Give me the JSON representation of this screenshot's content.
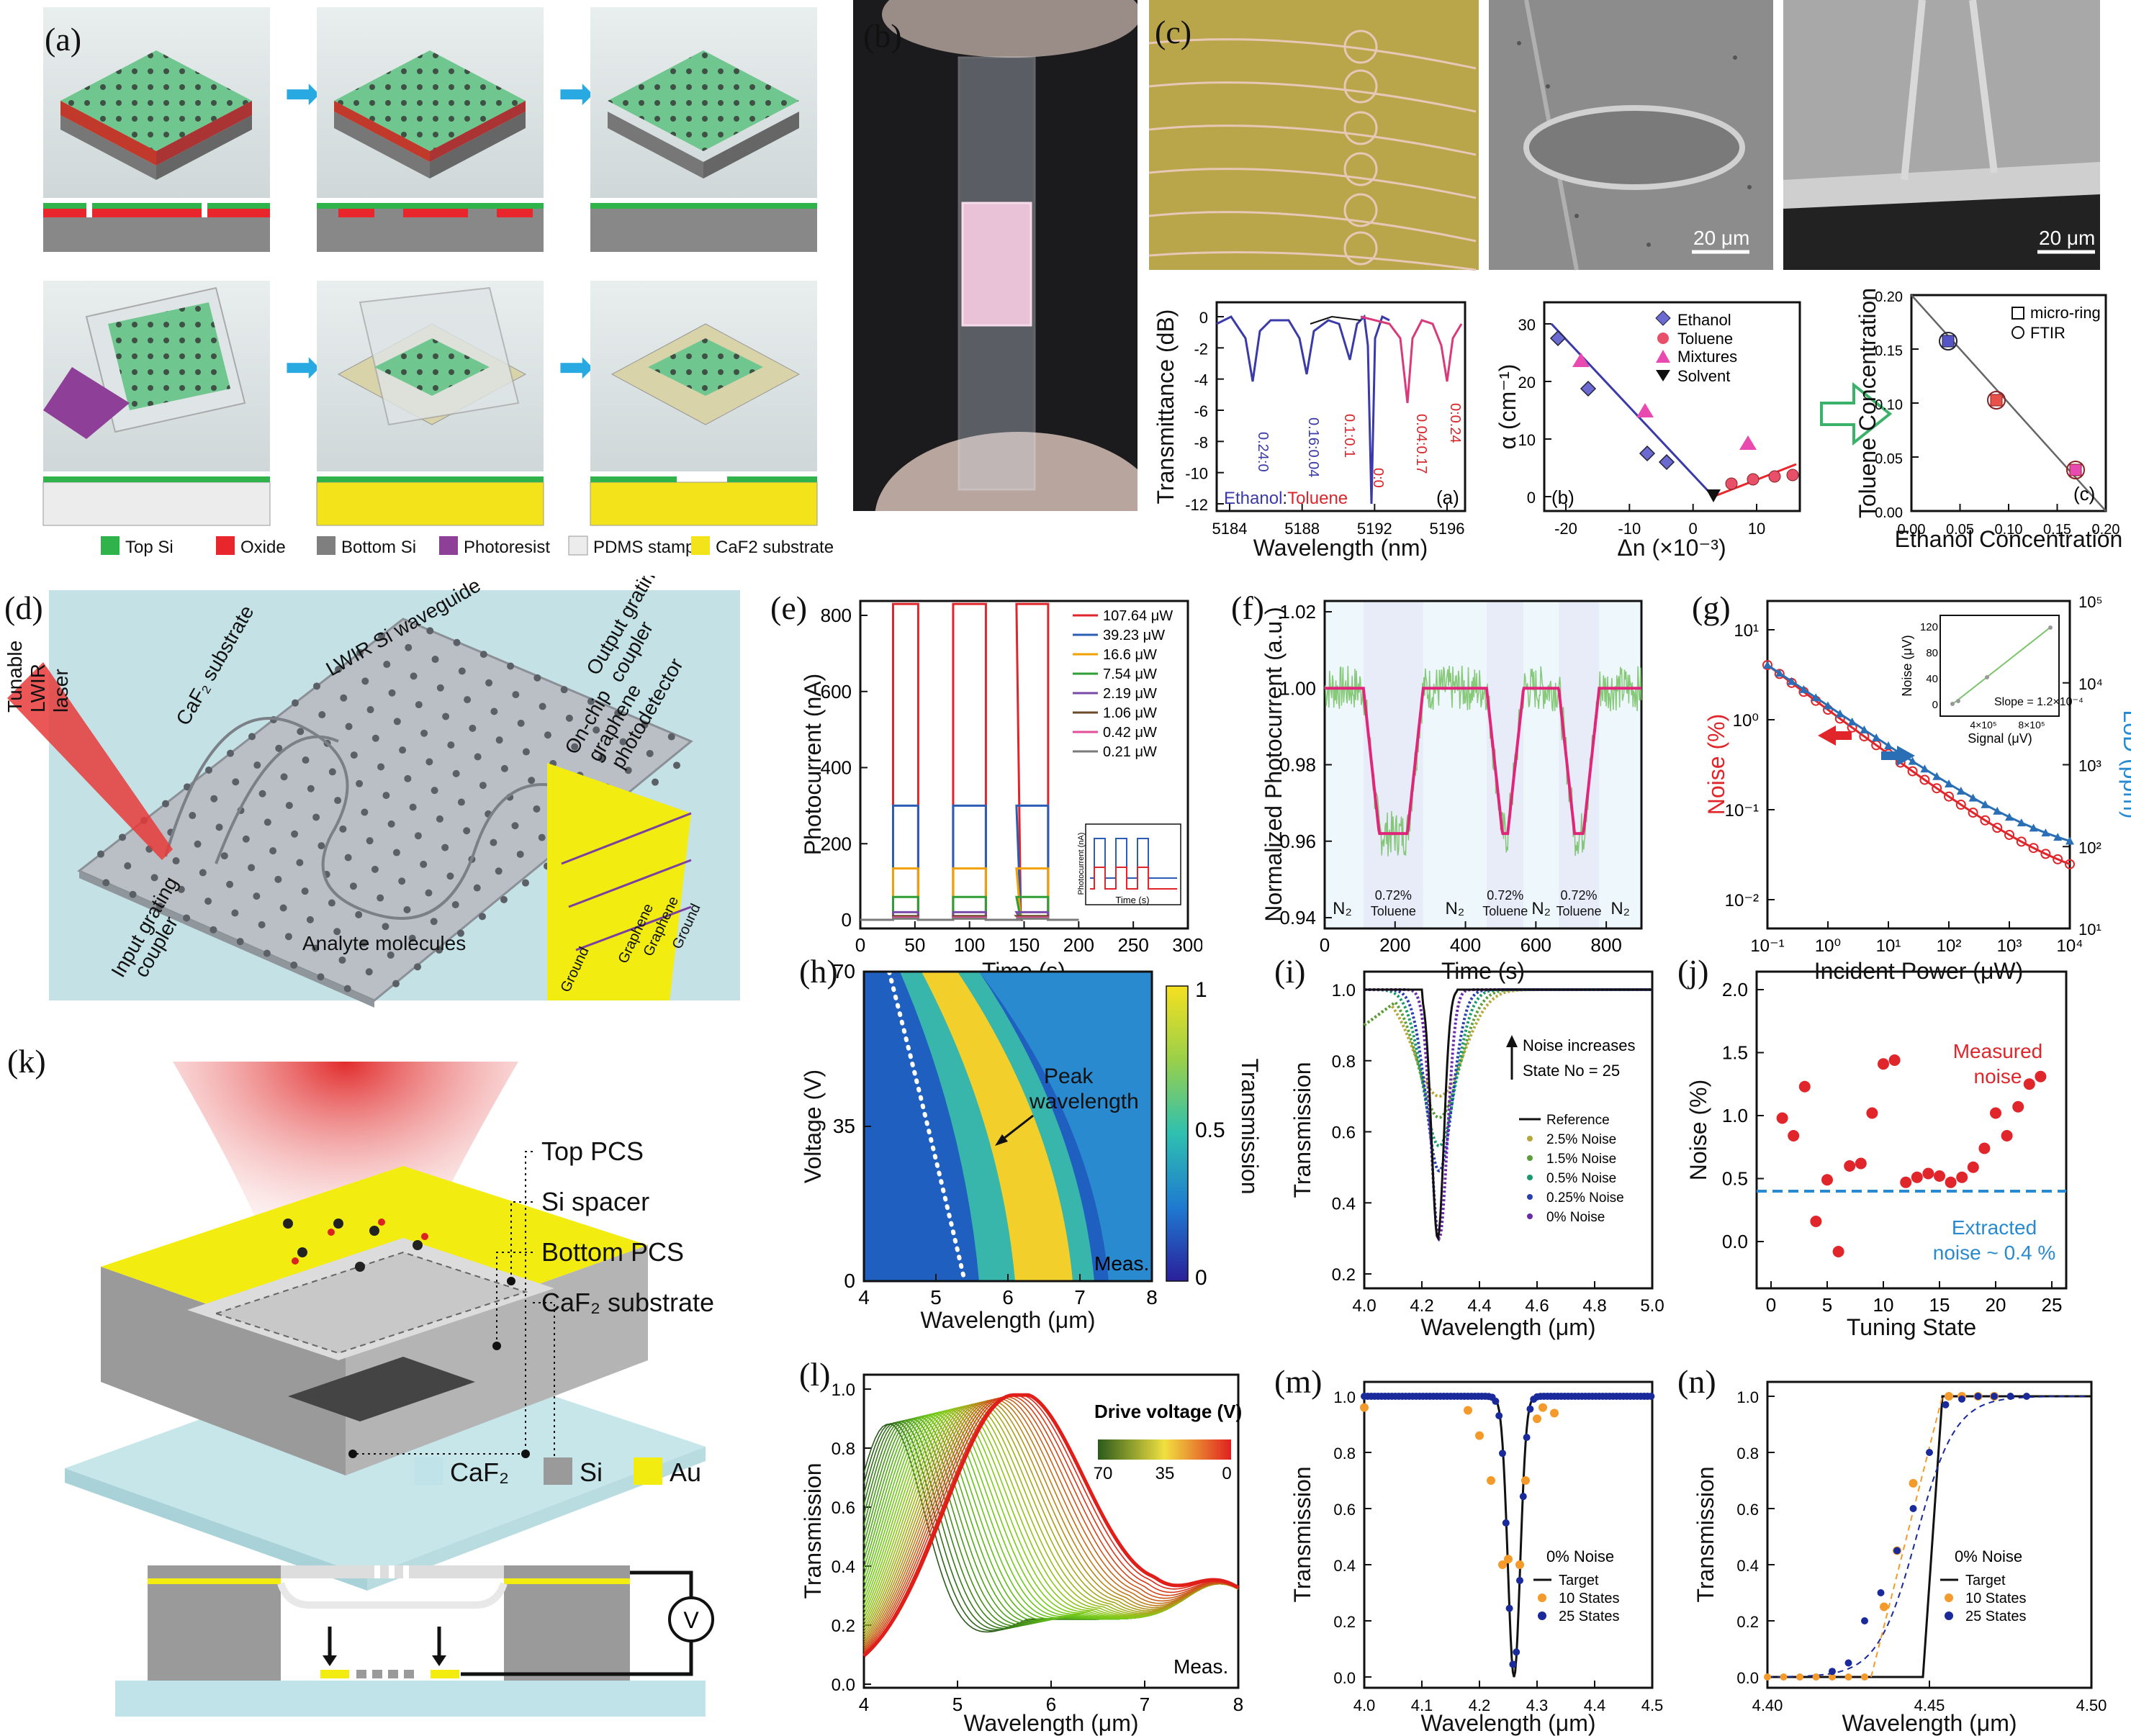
{
  "panel_labels": {
    "a": "(a)",
    "b": "(b)",
    "c": "(c)",
    "d": "(d)",
    "e": "(e)",
    "f": "(f)",
    "g": "(g)",
    "h": "(h)",
    "i": "(i)",
    "j": "(j)",
    "k": "(k)",
    "l": "(l)",
    "m": "(m)",
    "n": "(n)"
  },
  "a": {
    "legend": [
      "Top Si",
      "Oxide",
      "Bottom Si",
      "Photoresist",
      "PDMS stamp",
      "CaF2 substrate"
    ],
    "legend_colors": [
      "#2fb34a",
      "#e8262b",
      "#7f7f7f",
      "#8e3f97",
      "#ececec",
      "#f2e31b"
    ]
  },
  "c": {
    "scale_1": "20 μm",
    "scale_2": "20 μm",
    "sub_a": {
      "label": "(a)",
      "ylabel": "Transmittance (dB)",
      "xlabel": "Wavelength (nm)",
      "xticks": [
        "5184",
        "5188",
        "5192",
        "5196"
      ],
      "yticks": [
        "0",
        "-2",
        "-4",
        "-6",
        "-8",
        "-10",
        "-12"
      ],
      "dip_labels": [
        "0.24:0",
        "0.16:0.04",
        "0.1:0.1",
        "0:0",
        "0.04:0.17",
        "0:0.24"
      ],
      "legend_text_1": "Ethanol",
      "legend_sep": ":",
      "legend_text_2": "Toluene"
    },
    "sub_b": {
      "label": "(b)",
      "ylabel": "α (cm⁻¹)",
      "xlabel": "Δn (×10⁻³)",
      "xticks": [
        "-20",
        "-10",
        "0",
        "10"
      ],
      "yticks": [
        "0",
        "10",
        "20",
        "30"
      ],
      "legend": [
        "Ethanol",
        "Toluene",
        "Mixtures",
        "Solvent"
      ]
    },
    "sub_c": {
      "label": "(c)",
      "ylabel": "Toluene Concentration",
      "xlabel": "Ethanol Concentration",
      "xticks": [
        "0.00",
        "0.05",
        "0.10",
        "0.15",
        "0.20"
      ],
      "yticks": [
        "0.00",
        "0.05",
        "0.10",
        "0.15",
        "0.20"
      ],
      "legend": [
        "micro-ring",
        "FTIR"
      ]
    }
  },
  "d": {
    "labels": {
      "tunable": "Tunable",
      "lwir": "LWIR",
      "laser": "laser",
      "caf2": "CaF₂ substrate",
      "waveguide": "LWIR Si waveguide",
      "output1": "Output grating",
      "output2": "coupler",
      "onchip1": "On-chip",
      "onchip2": "graphene",
      "onchip3": "photodetector",
      "input1": "Input grating",
      "input2": "coupler",
      "analyte": "Analyte molecules",
      "ground1": "Ground",
      "ground2": "Ground",
      "graphene1": "Graphene",
      "graphene2": "Graphene"
    }
  },
  "e": {
    "ylabel": "Photocurrent (nA)",
    "xlabel": "Time (s)",
    "xticks": [
      "0",
      "50",
      "100",
      "150",
      "200",
      "250",
      "300"
    ],
    "yticks": [
      "0",
      "200",
      "400",
      "600",
      "800"
    ],
    "legend": [
      "107.64 μW",
      "39.23 μW",
      "16.6 μW",
      "7.54 μW",
      "2.19 μW",
      "1.06 μW",
      "0.42 μW",
      "0.21 μW"
    ],
    "legend_colors": [
      "#e0262b",
      "#2b5db5",
      "#f2a100",
      "#2e9e35",
      "#7a4aa8",
      "#6b4a2a",
      "#e34d9a",
      "#7a7a7a"
    ],
    "inset": {
      "ylabel": "Photocurrent (nA)",
      "xlabel": "Time (s)"
    }
  },
  "f": {
    "ylabel": "Normalized Photocurrent (a.u.)",
    "xlabel": "Time (s)",
    "xticks": [
      "0",
      "200",
      "400",
      "600",
      "800"
    ],
    "yticks": [
      "0.94",
      "0.96",
      "0.98",
      "1.00",
      "1.02"
    ],
    "segments": [
      "N₂",
      "0.72%",
      "Toluene",
      "N₂",
      "0.72%",
      "Toluene",
      "N₂",
      "0.72%",
      "Toluene",
      "N₂"
    ]
  },
  "g": {
    "ylabel_left": "Noise (%)",
    "ylabel_right": "LoD (ppm)",
    "xlabel": "Incident Power (μW)",
    "xticks": [
      "10⁻¹",
      "10⁰",
      "10¹",
      "10²",
      "10³",
      "10⁴"
    ],
    "yticks_left": [
      "10⁻²",
      "10⁻¹",
      "10⁰",
      "10¹"
    ],
    "yticks_right": [
      "10¹",
      "10²",
      "10³",
      "10⁴",
      "10⁵"
    ],
    "inset": {
      "ylabel": "Noise (μV)",
      "xlabel": "Signal (μV)",
      "yticks": [
        "0",
        "40",
        "80",
        "120"
      ],
      "xticks": [
        "4×10⁵",
        "8×10⁵"
      ],
      "slope": "Slope = 1.2×10⁻⁴"
    }
  },
  "h": {
    "ylabel": "Voltage (V)",
    "xlabel": "Wavelength (μm)",
    "xticks": [
      "4",
      "5",
      "6",
      "7",
      "8"
    ],
    "yticks": [
      "0",
      "35",
      "70"
    ],
    "cbar_label": "Transmission",
    "cbar_ticks": [
      "0",
      "0.5",
      "1"
    ],
    "peak1": "Peak",
    "peak2": "wavelength",
    "meas": "Meas."
  },
  "i": {
    "ylabel": "Transmission",
    "xlabel": "Wavelength (μm)",
    "xticks": [
      "4.0",
      "4.2",
      "4.4",
      "4.6",
      "4.8",
      "5.0"
    ],
    "yticks": [
      "0.2",
      "0.4",
      "0.6",
      "0.8",
      "1.0"
    ],
    "note1": "Noise increases",
    "note2": "State No = 25",
    "legend": [
      "Reference",
      "2.5% Noise",
      "1.5% Noise",
      "0.5% Noise",
      "0.25% Noise",
      "0% Noise"
    ],
    "legend_colors": [
      "#111111",
      "#b6a83a",
      "#5a9e3a",
      "#1a9a6a",
      "#2a3fb0",
      "#6a2aa8"
    ]
  },
  "j": {
    "ylabel": "Noise (%)",
    "xlabel": "Tuning State",
    "xticks": [
      "0",
      "5",
      "10",
      "15",
      "20",
      "25"
    ],
    "yticks": [
      "0.0",
      "0.5",
      "1.0",
      "1.5",
      "2.0"
    ],
    "measured1": "Measured",
    "measured2": "noise",
    "extracted1": "Extracted",
    "extracted2": "noise ~ 0.4 %",
    "values": [
      0.98,
      0.84,
      1.23,
      0.16,
      0.49,
      -0.08,
      0.6,
      0.62,
      1.02,
      1.41,
      1.44,
      0.47,
      0.51,
      0.54,
      0.52,
      0.47,
      0.51,
      0.59,
      0.74,
      1.02,
      0.84,
      1.07,
      1.25,
      1.31
    ]
  },
  "k": {
    "labels": [
      "Top PCS",
      "Si spacer",
      "Bottom PCS",
      "CaF₂ substrate"
    ],
    "legend": [
      "CaF₂",
      "Si",
      "Au"
    ],
    "legend_colors": [
      "#bfe3e8",
      "#9a9a9a",
      "#f2ec10"
    ],
    "v": "V"
  },
  "l": {
    "ylabel": "Transmission",
    "xlabel": "Wavelength (μm)",
    "xticks": [
      "4",
      "5",
      "6",
      "7",
      "8"
    ],
    "yticks": [
      "0.0",
      "0.2",
      "0.4",
      "0.6",
      "0.8",
      "1.0"
    ],
    "cbar_title": "Drive voltage (V)",
    "cbar_ticks": [
      "70",
      "35",
      "0"
    ],
    "meas": "Meas."
  },
  "m": {
    "ylabel": "Transmission",
    "xlabel": "Wavelength (μm)",
    "xticks": [
      "4.0",
      "4.1",
      "4.2",
      "4.3",
      "4.4",
      "4.5"
    ],
    "yticks": [
      "0.0",
      "0.2",
      "0.4",
      "0.6",
      "0.8",
      "1.0"
    ],
    "note": "0% Noise",
    "legend": [
      "Target",
      "10 States",
      "25 States"
    ]
  },
  "n": {
    "ylabel": "Transmission",
    "xlabel": "Wavelength (μm)",
    "xticks": [
      "4.40",
      "4.45",
      "4.50"
    ],
    "yticks": [
      "0.0",
      "0.2",
      "0.4",
      "0.6",
      "0.8",
      "1.0"
    ],
    "note": "0% Noise",
    "legend": [
      "Target",
      "10 States",
      "25 States"
    ]
  }
}
